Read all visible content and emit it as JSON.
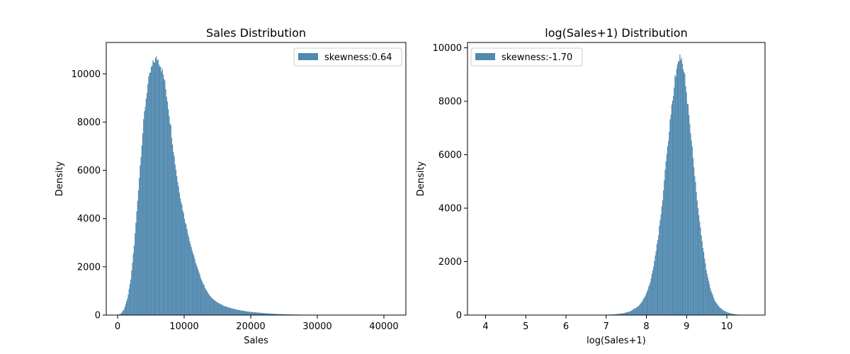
{
  "chart_data": [
    {
      "type": "histogram",
      "title": "Sales Distribution",
      "xlabel": "Sales",
      "ylabel": "Density",
      "xlim": [
        -1700,
        43300
      ],
      "ylim": [
        0,
        11300
      ],
      "xticks": [
        0,
        10000,
        20000,
        30000,
        40000
      ],
      "yticks": [
        0,
        2000,
        4000,
        6000,
        8000,
        10000
      ],
      "grid": false,
      "legend_position": "upper right",
      "series": [
        {
          "name": "skewness:0.64",
          "color": "#3274a1",
          "curve": [
            [
              0,
              0
            ],
            [
              500,
              60
            ],
            [
              1000,
              250
            ],
            [
              1500,
              700
            ],
            [
              2000,
              1500
            ],
            [
              2500,
              2900
            ],
            [
              3000,
              4700
            ],
            [
              3500,
              6600
            ],
            [
              4000,
              8300
            ],
            [
              4500,
              9500
            ],
            [
              5000,
              10150
            ],
            [
              5500,
              10550
            ],
            [
              6000,
              10650
            ],
            [
              6500,
              10350
            ],
            [
              7000,
              9800
            ],
            [
              7500,
              8900
            ],
            [
              8000,
              7800
            ],
            [
              8500,
              6600
            ],
            [
              9000,
              5600
            ],
            [
              9500,
              4800
            ],
            [
              10000,
              4100
            ],
            [
              10500,
              3500
            ],
            [
              11000,
              2900
            ],
            [
              11500,
              2400
            ],
            [
              12000,
              1950
            ],
            [
              12500,
              1550
            ],
            [
              13000,
              1220
            ],
            [
              13500,
              950
            ],
            [
              14000,
              750
            ],
            [
              15000,
              520
            ],
            [
              16000,
              380
            ],
            [
              17000,
              290
            ],
            [
              18000,
              220
            ],
            [
              19000,
              170
            ],
            [
              20000,
              130
            ],
            [
              22000,
              80
            ],
            [
              24000,
              45
            ],
            [
              26000,
              25
            ],
            [
              28000,
              14
            ],
            [
              30000,
              8
            ],
            [
              33000,
              4
            ],
            [
              36000,
              2
            ],
            [
              41000,
              0
            ]
          ]
        }
      ]
    },
    {
      "type": "histogram",
      "title": "log(Sales+1) Distribution",
      "xlabel": "log(Sales+1)",
      "ylabel": "Density",
      "xlim": [
        3.55,
        10.95
      ],
      "ylim": [
        0,
        10200
      ],
      "xticks": [
        4,
        5,
        6,
        7,
        8,
        9,
        10
      ],
      "yticks": [
        0,
        2000,
        4000,
        6000,
        8000,
        10000
      ],
      "grid": false,
      "legend_position": "upper left",
      "series": [
        {
          "name": "skewness:-1.70",
          "color": "#3274a1",
          "curve": [
            [
              3.85,
              0
            ],
            [
              6.9,
              0
            ],
            [
              7.0,
              10
            ],
            [
              7.2,
              25
            ],
            [
              7.4,
              60
            ],
            [
              7.6,
              140
            ],
            [
              7.8,
              330
            ],
            [
              7.9,
              520
            ],
            [
              8.0,
              800
            ],
            [
              8.1,
              1250
            ],
            [
              8.2,
              2000
            ],
            [
              8.3,
              3000
            ],
            [
              8.4,
              4300
            ],
            [
              8.5,
              5900
            ],
            [
              8.6,
              7400
            ],
            [
              8.7,
              8700
            ],
            [
              8.75,
              9250
            ],
            [
              8.8,
              9600
            ],
            [
              8.85,
              9650
            ],
            [
              8.9,
              9450
            ],
            [
              8.95,
              9000
            ],
            [
              9.0,
              8300
            ],
            [
              9.1,
              6900
            ],
            [
              9.2,
              5300
            ],
            [
              9.3,
              3800
            ],
            [
              9.4,
              2600
            ],
            [
              9.5,
              1600
            ],
            [
              9.6,
              950
            ],
            [
              9.7,
              550
            ],
            [
              9.8,
              320
            ],
            [
              9.9,
              190
            ],
            [
              10.0,
              110
            ],
            [
              10.1,
              60
            ],
            [
              10.2,
              30
            ],
            [
              10.3,
              12
            ],
            [
              10.4,
              0
            ]
          ]
        }
      ]
    }
  ]
}
